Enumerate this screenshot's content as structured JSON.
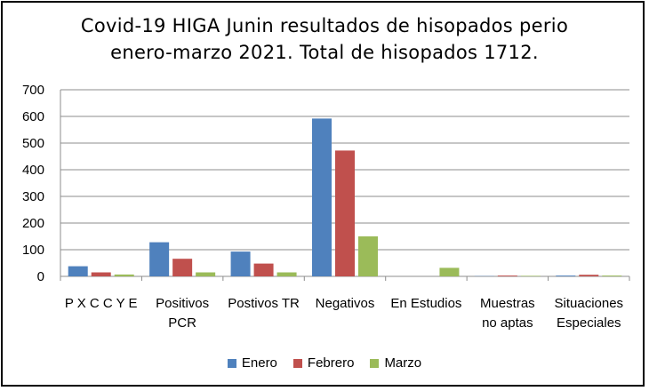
{
  "chart_data": {
    "type": "bar",
    "title_lines": [
      "Covid-19 HIGA Junin resultados de hisopados perio",
      "enero-marzo 2021. Total de hisopados 1712."
    ],
    "categories": [
      [
        "P X C C Y E"
      ],
      [
        "Positivos",
        "PCR"
      ],
      [
        "Postivos TR"
      ],
      [
        "Negativos"
      ],
      [
        "En Estudios"
      ],
      [
        "Muestras",
        "no aptas"
      ],
      [
        "Situaciones",
        "Especiales"
      ]
    ],
    "series": [
      {
        "name": "Enero",
        "color": "#4F81BD",
        "values": [
          38,
          128,
          93,
          592,
          0,
          1,
          3
        ]
      },
      {
        "name": "Febrero",
        "color": "#C0504D",
        "values": [
          15,
          66,
          48,
          472,
          0,
          3,
          6
        ]
      },
      {
        "name": "Marzo",
        "color": "#9BBB59",
        "values": [
          7,
          15,
          15,
          150,
          32,
          2,
          3
        ]
      }
    ],
    "ylim": [
      0,
      700
    ],
    "yticks": [
      0,
      100,
      200,
      300,
      400,
      500,
      600,
      700
    ],
    "grid": true,
    "legend_position": "bottom"
  }
}
